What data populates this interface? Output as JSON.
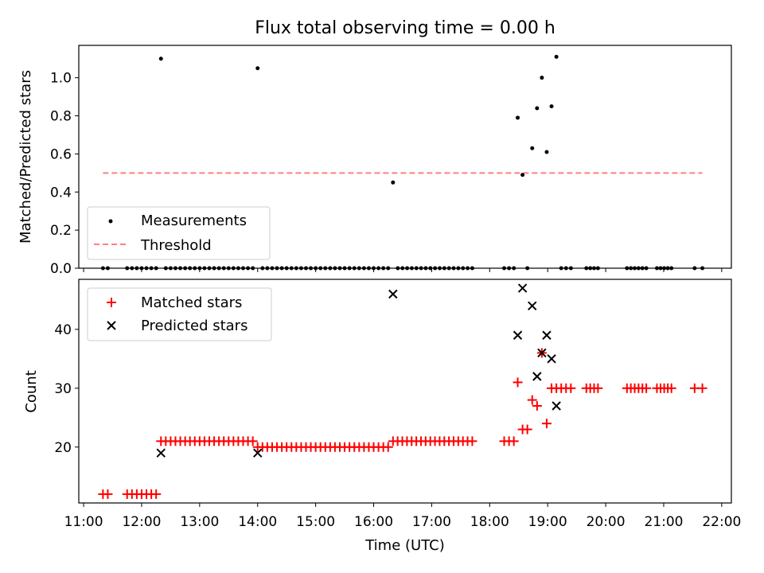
{
  "title": "Flux total observing time = 0.00 h",
  "colors": {
    "measurements": "#000000",
    "threshold": "#ff7f7f",
    "matched": "#ff0000",
    "predicted": "#000000"
  },
  "chart_data": [
    {
      "type": "scatter",
      "panel": "top",
      "title": "Flux total observing time = 0.00 h",
      "xlabel": "",
      "ylabel": "Matched/Predicted stars",
      "xlim": [
        "10:55",
        "22:10"
      ],
      "ylim": [
        0,
        1.17
      ],
      "yticks": [
        0.0,
        0.2,
        0.4,
        0.6,
        0.8,
        1.0
      ],
      "yticklabels": [
        "0.0",
        "0.2",
        "0.4",
        "0.6",
        "0.8",
        "1.0"
      ],
      "xticks": [
        "11:00",
        "12:00",
        "13:00",
        "14:00",
        "15:00",
        "16:00",
        "17:00",
        "18:00",
        "19:00",
        "20:00",
        "21:00",
        "22:00"
      ],
      "grid": false,
      "legend": {
        "placement": "lower-left",
        "entries": [
          {
            "label": "Measurements",
            "marker": "dot"
          },
          {
            "label": "Threshold",
            "marker": "dashed-line"
          }
        ]
      },
      "series": [
        {
          "name": "Measurements",
          "marker": "dot",
          "points": [
            {
              "x": "12:20",
              "y": 1.1
            },
            {
              "x": "14:00",
              "y": 1.05
            },
            {
              "x": "16:20",
              "y": 0.45
            },
            {
              "x": "18:29",
              "y": 0.79
            },
            {
              "x": "18:34",
              "y": 0.49
            },
            {
              "x": "18:44",
              "y": 0.63
            },
            {
              "x": "18:49",
              "y": 0.84
            },
            {
              "x": "18:54",
              "y": 1.0
            },
            {
              "x": "18:59",
              "y": 0.61
            },
            {
              "x": "19:04",
              "y": 0.85
            },
            {
              "x": "19:09",
              "y": 1.11
            }
          ],
          "zero_runs": [
            {
              "start": "11:20",
              "end": "11:25",
              "count": 2
            },
            {
              "start": "11:45",
              "end": "12:15",
              "count": 7
            },
            {
              "start": "12:25",
              "end": "13:55",
              "count": 19
            },
            {
              "start": "14:05",
              "end": "16:15",
              "count": 27
            },
            {
              "start": "16:25",
              "end": "17:42",
              "count": 17
            },
            {
              "start": "18:15",
              "end": "18:25",
              "count": 3
            },
            {
              "start": "18:39",
              "end": "18:39",
              "count": 1
            },
            {
              "start": "19:14",
              "end": "19:24",
              "count": 3
            },
            {
              "start": "19:40",
              "end": "19:52",
              "count": 4
            },
            {
              "start": "20:22",
              "end": "20:34",
              "count": 4
            },
            {
              "start": "20:38",
              "end": "20:42",
              "count": 2
            },
            {
              "start": "20:53",
              "end": "21:08",
              "count": 5
            },
            {
              "start": "21:32",
              "end": "21:40",
              "count": 2
            }
          ]
        },
        {
          "name": "Threshold",
          "type": "line",
          "style": "dashed",
          "x": [
            "11:20",
            "21:40"
          ],
          "y": [
            0.5,
            0.5
          ]
        }
      ]
    },
    {
      "type": "scatter",
      "panel": "bottom",
      "xlabel": "Time (UTC)",
      "ylabel": "Count",
      "xlim": [
        "10:55",
        "22:10"
      ],
      "ylim": [
        10.5,
        48.5
      ],
      "yticks": [
        20,
        30,
        40
      ],
      "yticklabels": [
        "20",
        "30",
        "40"
      ],
      "xticks": [
        "11:00",
        "12:00",
        "13:00",
        "14:00",
        "15:00",
        "16:00",
        "17:00",
        "18:00",
        "19:00",
        "20:00",
        "21:00",
        "22:00"
      ],
      "xticklabels": [
        "11:00",
        "12:00",
        "13:00",
        "14:00",
        "15:00",
        "16:00",
        "17:00",
        "18:00",
        "19:00",
        "20:00",
        "21:00",
        "22:00"
      ],
      "grid": false,
      "legend": {
        "placement": "upper-left",
        "entries": [
          {
            "label": "Matched stars",
            "marker": "plus"
          },
          {
            "label": "Predicted stars",
            "marker": "x"
          }
        ]
      },
      "series": [
        {
          "name": "Matched stars",
          "marker": "plus",
          "runs": [
            {
              "start": "11:20",
              "end": "11:25",
              "count": 2,
              "y": 12
            },
            {
              "start": "11:45",
              "end": "12:15",
              "count": 7,
              "y": 12
            },
            {
              "start": "12:20",
              "end": "13:55",
              "count": 20,
              "y": 21
            },
            {
              "start": "14:00",
              "end": "16:15",
              "count": 28,
              "y": 20
            },
            {
              "start": "16:20",
              "end": "17:42",
              "count": 18,
              "y": 21
            },
            {
              "start": "18:15",
              "end": "18:25",
              "count": 3,
              "y": 21
            },
            {
              "start": "19:04",
              "end": "19:24",
              "count": 5,
              "y": 30
            },
            {
              "start": "19:40",
              "end": "19:52",
              "count": 4,
              "y": 30
            },
            {
              "start": "20:22",
              "end": "20:34",
              "count": 4,
              "y": 30
            },
            {
              "start": "20:38",
              "end": "20:42",
              "count": 2,
              "y": 30
            },
            {
              "start": "20:53",
              "end": "21:08",
              "count": 5,
              "y": 30
            },
            {
              "start": "21:32",
              "end": "21:40",
              "count": 2,
              "y": 30
            }
          ],
          "points": [
            {
              "x": "18:29",
              "y": 31
            },
            {
              "x": "18:34",
              "y": 23
            },
            {
              "x": "18:39",
              "y": 23
            },
            {
              "x": "18:44",
              "y": 28
            },
            {
              "x": "18:49",
              "y": 27
            },
            {
              "x": "18:54",
              "y": 36
            },
            {
              "x": "18:59",
              "y": 24
            }
          ]
        },
        {
          "name": "Predicted stars",
          "marker": "x",
          "points": [
            {
              "x": "12:20",
              "y": 19
            },
            {
              "x": "14:00",
              "y": 19
            },
            {
              "x": "16:20",
              "y": 46
            },
            {
              "x": "18:29",
              "y": 39
            },
            {
              "x": "18:34",
              "y": 47
            },
            {
              "x": "18:44",
              "y": 44
            },
            {
              "x": "18:49",
              "y": 32
            },
            {
              "x": "18:54",
              "y": 36
            },
            {
              "x": "18:59",
              "y": 39
            },
            {
              "x": "19:04",
              "y": 35
            },
            {
              "x": "19:09",
              "y": 27
            }
          ]
        }
      ]
    }
  ]
}
